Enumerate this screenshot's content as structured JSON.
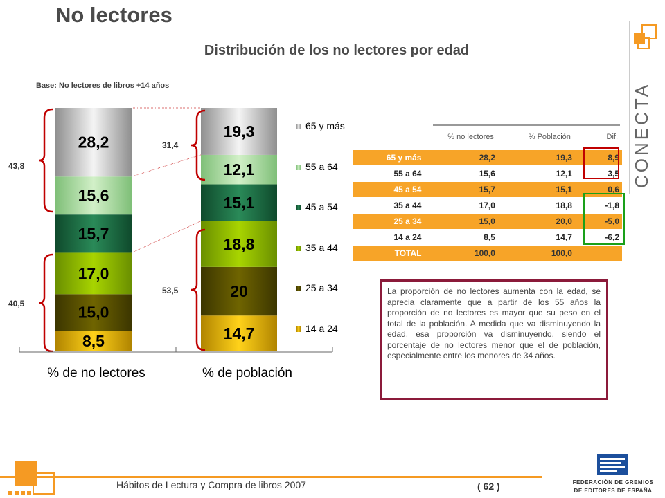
{
  "header": {
    "title": "No lectores",
    "subtitle": "Distribución de los no lectores por edad",
    "base_note": "Base: No lectores de libros +14 años"
  },
  "chart_data": {
    "type": "bar",
    "stacked": true,
    "categories": [
      "% de no lectores",
      "% de población"
    ],
    "series": [
      {
        "name": "14 a 24",
        "values": [
          8.5,
          14.7
        ],
        "labels": [
          "8,5",
          "14,7"
        ],
        "color": "#d9a800"
      },
      {
        "name": "25 a 34",
        "values": [
          15.0,
          20.0
        ],
        "labels": [
          "15,0",
          "20"
        ],
        "color": "#5c5300"
      },
      {
        "name": "35 a 44",
        "values": [
          17.0,
          18.8
        ],
        "labels": [
          "17,0",
          "18,8"
        ],
        "color": "#8cb800"
      },
      {
        "name": "45 a 54",
        "values": [
          15.7,
          15.1
        ],
        "labels": [
          "15,7",
          "15,1"
        ],
        "color": "#1f7048"
      },
      {
        "name": "55 a 64",
        "values": [
          15.6,
          12.1
        ],
        "labels": [
          "15,6",
          "12,1"
        ],
        "color": "#a6d89c"
      },
      {
        "name": "65 y más",
        "values": [
          28.2,
          19.3
        ],
        "labels": [
          "28,2",
          "19,3"
        ],
        "color": "#c4c4c4"
      }
    ],
    "group_labels": {
      "no_lectores_top": "43,8",
      "no_lectores_bottom": "40,5",
      "poblacion_top": "31,4",
      "poblacion_bottom": "53,5"
    },
    "ylim": [
      0,
      100
    ],
    "legend_position": "right",
    "grid": false
  },
  "table": {
    "headers": [
      "% no lectores",
      "% Población",
      "Dif."
    ],
    "rows": [
      {
        "label": "65 y más",
        "no_lectores": "28,2",
        "poblacion": "19,3",
        "dif": "8,9"
      },
      {
        "label": "55 a 64",
        "no_lectores": "15,6",
        "poblacion": "12,1",
        "dif": "3,5"
      },
      {
        "label": "45 a 54",
        "no_lectores": "15,7",
        "poblacion": "15,1",
        "dif": "0,6"
      },
      {
        "label": "35 a 44",
        "no_lectores": "17,0",
        "poblacion": "18,8",
        "dif": "-1,8"
      },
      {
        "label": "25 a 34",
        "no_lectores": "15,0",
        "poblacion": "20,0",
        "dif": "-5,0"
      },
      {
        "label": "14 a 24",
        "no_lectores": "8,5",
        "poblacion": "14,7",
        "dif": "-6,2"
      },
      {
        "label": "TOTAL",
        "no_lectores": "100,0",
        "poblacion": "100,0",
        "dif": ""
      }
    ]
  },
  "note": "La proporción de no lectores aumenta con la edad, se aprecia claramente que a partir de los 55 años la proporción de no lectores es mayor que su peso en el total de la población. A medida que va disminuyendo la edad, esa proporción va disminuyendo, siendo el porcentaje de no lectores menor que el de población, especialmente entre los menores de 34 años.",
  "logo": {
    "conecta": "CONECTA",
    "federacion_line1": "FEDERACIÓN DE GREMIOS",
    "federacion_line2": "DE EDITORES DE ESPAÑA"
  },
  "footer": {
    "text": "Hábitos de Lectura y Compra de libros 2007",
    "page": "( 62 )"
  },
  "colors": {
    "accent_orange": "#f59a23",
    "table_orange": "#f7a428",
    "note_border": "#8b1a3a",
    "bracket_red": "#c00000"
  }
}
